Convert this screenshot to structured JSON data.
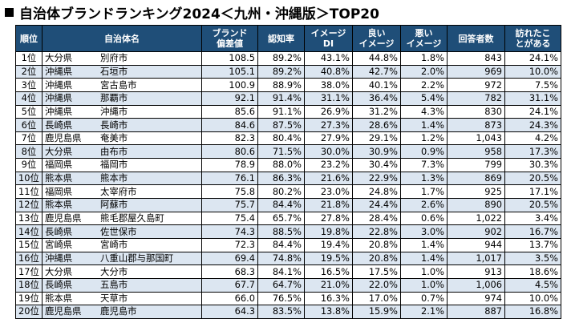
{
  "title": "自治体ブランドランキング2024＜九州・沖縄版＞TOP20",
  "headers": {
    "rank": "順位",
    "municipality": "自治体名",
    "brand": [
      "ブランド",
      "偏差値"
    ],
    "recognition": "認知率",
    "image_di": [
      "イメージ",
      "DI"
    ],
    "good": [
      "良い",
      "イメージ"
    ],
    "bad": [
      "悪い",
      "イメージ"
    ],
    "respondents": "回答者数",
    "visited": [
      "訪れたこ",
      "とがある"
    ]
  },
  "rows": [
    {
      "rank": "1位",
      "pref": "大分県",
      "city": "別府市",
      "brand": "108.5",
      "recog": "89.2%",
      "di": "43.1%",
      "good": "44.8%",
      "bad": "1.8%",
      "resp": "843",
      "visit": "24.1%"
    },
    {
      "rank": "2位",
      "pref": "沖縄県",
      "city": "石垣市",
      "brand": "105.1",
      "recog": "89.2%",
      "di": "40.8%",
      "good": "42.7%",
      "bad": "2.0%",
      "resp": "969",
      "visit": "10.0%"
    },
    {
      "rank": "3位",
      "pref": "沖縄県",
      "city": "宮古島市",
      "brand": "100.9",
      "recog": "88.9%",
      "di": "38.0%",
      "good": "40.1%",
      "bad": "2.2%",
      "resp": "972",
      "visit": "7.5%"
    },
    {
      "rank": "4位",
      "pref": "沖縄県",
      "city": "那覇市",
      "brand": "92.1",
      "recog": "91.4%",
      "di": "31.1%",
      "good": "36.4%",
      "bad": "5.4%",
      "resp": "782",
      "visit": "31.1%"
    },
    {
      "rank": "5位",
      "pref": "沖縄県",
      "city": "沖縄市",
      "brand": "85.6",
      "recog": "91.1%",
      "di": "26.9%",
      "good": "31.2%",
      "bad": "4.3%",
      "resp": "830",
      "visit": "24.1%"
    },
    {
      "rank": "6位",
      "pref": "長崎県",
      "city": "長崎市",
      "brand": "84.6",
      "recog": "87.5%",
      "di": "27.3%",
      "good": "28.6%",
      "bad": "1.4%",
      "resp": "873",
      "visit": "24.3%"
    },
    {
      "rank": "7位",
      "pref": "鹿児島県",
      "city": "奄美市",
      "brand": "82.3",
      "recog": "80.4%",
      "di": "27.9%",
      "good": "29.1%",
      "bad": "1.2%",
      "resp": "1,043",
      "visit": "4.2%"
    },
    {
      "rank": "8位",
      "pref": "大分県",
      "city": "由布市",
      "brand": "80.6",
      "recog": "71.5%",
      "di": "30.0%",
      "good": "30.9%",
      "bad": "0.9%",
      "resp": "958",
      "visit": "17.3%"
    },
    {
      "rank": "9位",
      "pref": "福岡県",
      "city": "福岡市",
      "brand": "78.9",
      "recog": "88.0%",
      "di": "23.2%",
      "good": "30.4%",
      "bad": "7.3%",
      "resp": "799",
      "visit": "30.3%"
    },
    {
      "rank": "10位",
      "pref": "熊本県",
      "city": "熊本市",
      "brand": "76.1",
      "recog": "86.3%",
      "di": "21.6%",
      "good": "22.9%",
      "bad": "1.3%",
      "resp": "869",
      "visit": "20.5%"
    },
    {
      "rank": "11位",
      "pref": "福岡県",
      "city": "太宰府市",
      "brand": "75.8",
      "recog": "80.2%",
      "di": "23.0%",
      "good": "24.8%",
      "bad": "1.7%",
      "resp": "925",
      "visit": "17.1%"
    },
    {
      "rank": "12位",
      "pref": "熊本県",
      "city": "阿蘇市",
      "brand": "75.7",
      "recog": "84.4%",
      "di": "21.8%",
      "good": "24.4%",
      "bad": "2.6%",
      "resp": "890",
      "visit": "20.5%"
    },
    {
      "rank": "13位",
      "pref": "鹿児島県",
      "city": "熊毛郡屋久島町",
      "brand": "75.4",
      "recog": "65.7%",
      "di": "27.8%",
      "good": "28.4%",
      "bad": "0.6%",
      "resp": "1,022",
      "visit": "3.4%"
    },
    {
      "rank": "14位",
      "pref": "長崎県",
      "city": "佐世保市",
      "brand": "74.3",
      "recog": "88.5%",
      "di": "19.8%",
      "good": "22.8%",
      "bad": "3.0%",
      "resp": "902",
      "visit": "16.7%"
    },
    {
      "rank": "15位",
      "pref": "宮崎県",
      "city": "宮崎市",
      "brand": "72.3",
      "recog": "84.4%",
      "di": "19.4%",
      "good": "20.8%",
      "bad": "1.4%",
      "resp": "944",
      "visit": "13.7%"
    },
    {
      "rank": "16位",
      "pref": "沖縄県",
      "city": "八重山郡与那国町",
      "brand": "69.4",
      "recog": "74.8%",
      "di": "19.5%",
      "good": "20.8%",
      "bad": "1.4%",
      "resp": "1,017",
      "visit": "3.5%"
    },
    {
      "rank": "17位",
      "pref": "大分県",
      "city": "大分市",
      "brand": "68.3",
      "recog": "84.1%",
      "di": "16.5%",
      "good": "17.5%",
      "bad": "1.0%",
      "resp": "913",
      "visit": "18.6%"
    },
    {
      "rank": "18位",
      "pref": "長崎県",
      "city": "五島市",
      "brand": "67.7",
      "recog": "64.7%",
      "di": "21.0%",
      "good": "22.0%",
      "bad": "1.0%",
      "resp": "1,006",
      "visit": "4.5%"
    },
    {
      "rank": "19位",
      "pref": "熊本県",
      "city": "天草市",
      "brand": "66.0",
      "recog": "76.5%",
      "di": "16.3%",
      "good": "17.0%",
      "bad": "0.7%",
      "resp": "974",
      "visit": "10.0%"
    },
    {
      "rank": "20位",
      "pref": "鹿児島県",
      "city": "鹿児島市",
      "brand": "64.3",
      "recog": "83.5%",
      "di": "13.8%",
      "good": "15.9%",
      "bad": "2.1%",
      "resp": "887",
      "visit": "16.8%"
    }
  ]
}
